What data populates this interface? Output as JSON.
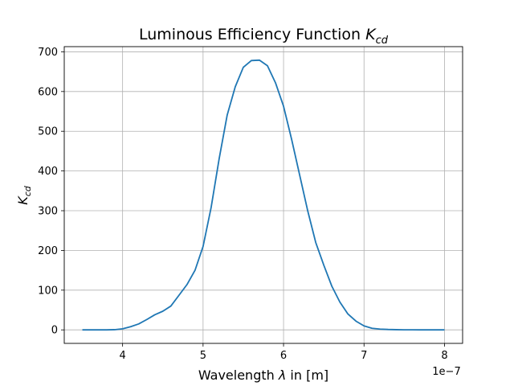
{
  "chart_data": {
    "type": "line",
    "title_main": "Luminous Efficiency Function ",
    "title_math": "K",
    "title_sub": "cd",
    "xlabel_main": "Wavelength ",
    "xlabel_math": "λ",
    "xlabel_rest": " in [m]",
    "ylabel_math": "K",
    "ylabel_sub": "cd",
    "x_offset_label": "1e−7",
    "xlim": [
      3.275,
      8.225
    ],
    "ylim": [
      -34,
      713
    ],
    "x_ticks": [
      4,
      5,
      6,
      7,
      8
    ],
    "y_ticks": [
      0,
      100,
      200,
      300,
      400,
      500,
      600,
      700
    ],
    "grid": true,
    "series": [
      {
        "color": "#1f77b4",
        "x": [
          3.5,
          3.6,
          3.7,
          3.8,
          3.9,
          4.0,
          4.1,
          4.2,
          4.3,
          4.4,
          4.5,
          4.6,
          4.7,
          4.8,
          4.9,
          5.0,
          5.1,
          5.2,
          5.3,
          5.4,
          5.5,
          5.6,
          5.7,
          5.8,
          5.9,
          6.0,
          6.1,
          6.2,
          6.3,
          6.4,
          6.5,
          6.6,
          6.7,
          6.8,
          6.9,
          7.0,
          7.1,
          7.2,
          7.3,
          7.4,
          7.5,
          7.6,
          7.7,
          7.8,
          7.9,
          8.0
        ],
        "y": [
          0,
          0,
          0,
          0,
          0.5,
          2.7,
          8,
          15,
          26,
          38,
          47,
          60,
          87,
          114,
          150,
          210,
          308,
          431,
          541,
          612,
          661,
          678,
          679,
          665,
          622,
          563,
          480,
          390,
          300,
          220,
          163,
          110,
          70,
          40,
          22,
          10,
          4,
          2,
          1,
          0.5,
          0.2,
          0.1,
          0,
          0,
          0,
          0
        ]
      }
    ]
  }
}
